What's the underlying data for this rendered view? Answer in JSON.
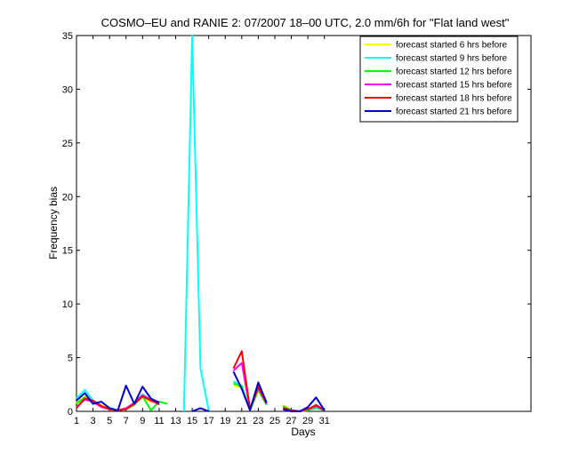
{
  "chart_data": {
    "type": "line",
    "title": "COSMO–EU and RANIE 2: 07/2007 18–00 UTC, 2.0 mm/6h for \"Flat land west\"",
    "xlabel": "Days",
    "ylabel": "Frequency bias",
    "xlim": [
      1,
      56
    ],
    "ylim": [
      0,
      35
    ],
    "grid": false,
    "legend_position": "top-right",
    "xticks": [
      1,
      3,
      5,
      7,
      9,
      11,
      13,
      15,
      17,
      19,
      21,
      23,
      25,
      27,
      29,
      31
    ],
    "yticks": [
      0,
      5,
      10,
      15,
      20,
      25,
      30,
      35
    ],
    "series": [
      {
        "name": "forecast started 6 hrs before",
        "color": "#ffff00",
        "x": [
          1,
          2,
          3,
          4,
          5,
          6,
          7,
          8,
          9,
          10,
          11,
          12,
          13,
          14,
          15,
          16,
          17,
          18,
          19,
          20,
          21,
          22,
          23,
          24,
          25,
          26,
          27,
          28,
          29,
          30,
          31
        ],
        "y": [
          0.8,
          1.4,
          0.8,
          0.6,
          0.2,
          0.1,
          0.2,
          0.7,
          1.3,
          0.9,
          0.8,
          null,
          null,
          null,
          null,
          null,
          null,
          null,
          null,
          2.4,
          2.2,
          0.1,
          1.9,
          0.6,
          null,
          0.6,
          0.1,
          0.0,
          0.1,
          0.3,
          0.1
        ]
      },
      {
        "name": "forecast started 9 hrs before",
        "color": "#00ffff",
        "x": [
          1,
          2,
          3,
          4,
          5,
          6,
          7,
          8,
          9,
          10,
          11,
          12,
          13,
          14,
          15,
          16,
          17,
          18,
          19,
          20,
          21,
          22,
          23,
          24,
          25,
          26,
          27,
          28,
          29,
          30,
          31
        ],
        "y": [
          1.2,
          2.0,
          1.0,
          0.5,
          0.2,
          0.1,
          0.2,
          0.8,
          1.6,
          1.0,
          0.9,
          null,
          null,
          0.0,
          35.0,
          4.0,
          0.1,
          null,
          null,
          2.8,
          2.4,
          0.1,
          2.1,
          0.7,
          null,
          0.4,
          0.1,
          0.0,
          0.1,
          0.3,
          0.1
        ]
      },
      {
        "name": "forecast started 12 hrs before",
        "color": "#00ff00",
        "x": [
          1,
          2,
          3,
          4,
          5,
          6,
          7,
          8,
          9,
          10,
          11,
          12,
          13,
          14,
          15,
          16,
          17,
          18,
          19,
          20,
          21,
          22,
          23,
          24,
          25,
          26,
          27,
          28,
          29,
          30,
          31
        ],
        "y": [
          0.7,
          1.3,
          0.8,
          0.5,
          0.2,
          0.1,
          0.2,
          0.6,
          1.4,
          0.1,
          0.9,
          0.7,
          null,
          null,
          null,
          null,
          null,
          null,
          null,
          2.6,
          2.3,
          0.1,
          2.0,
          0.6,
          null,
          0.5,
          0.1,
          0.0,
          0.1,
          0.4,
          0.1
        ]
      },
      {
        "name": "forecast started 15 hrs before",
        "color": "#ff00ff",
        "x": [
          1,
          2,
          3,
          4,
          5,
          6,
          7,
          8,
          9,
          10,
          11,
          12,
          13,
          14,
          15,
          16,
          17,
          18,
          19,
          20,
          21,
          22,
          23,
          24,
          25,
          26,
          27,
          28,
          29,
          30,
          31
        ],
        "y": [
          0.4,
          1.1,
          0.9,
          0.4,
          0.2,
          0.1,
          0.3,
          0.8,
          1.5,
          1.1,
          0.6,
          null,
          null,
          null,
          null,
          null,
          null,
          null,
          null,
          3.8,
          4.5,
          0.2,
          2.2,
          0.7,
          null,
          0.3,
          0.1,
          0.0,
          0.2,
          0.5,
          0.1
        ]
      },
      {
        "name": "forecast started 18 hrs before",
        "color": "#ff0000",
        "x": [
          1,
          2,
          3,
          4,
          5,
          6,
          7,
          8,
          9,
          10,
          11,
          12,
          13,
          14,
          15,
          16,
          17,
          18,
          19,
          20,
          21,
          22,
          23,
          24,
          25,
          26,
          27,
          28,
          29,
          30,
          31
        ],
        "y": [
          0.3,
          1.2,
          1.0,
          0.5,
          0.2,
          0.1,
          0.2,
          0.7,
          1.4,
          1.0,
          0.7,
          null,
          null,
          null,
          null,
          null,
          null,
          null,
          null,
          4.0,
          5.6,
          0.2,
          2.3,
          0.8,
          null,
          0.3,
          0.1,
          0.0,
          0.2,
          0.6,
          0.1
        ]
      },
      {
        "name": "forecast started 21 hrs before",
        "color": "#0000cc",
        "x": [
          1,
          2,
          3,
          4,
          5,
          6,
          7,
          8,
          9,
          10,
          11,
          12,
          13,
          14,
          15,
          16,
          17,
          18,
          19,
          20,
          21,
          22,
          23,
          24,
          25,
          26,
          27,
          28,
          29,
          30,
          31
        ],
        "y": [
          1.0,
          1.7,
          0.7,
          0.9,
          0.3,
          0.1,
          2.4,
          0.7,
          2.3,
          1.2,
          0.8,
          null,
          null,
          null,
          0.0,
          0.3,
          0.0,
          null,
          null,
          3.7,
          2.1,
          0.1,
          2.7,
          0.8,
          null,
          0.2,
          0.0,
          0.0,
          0.4,
          1.3,
          0.1
        ]
      }
    ]
  }
}
